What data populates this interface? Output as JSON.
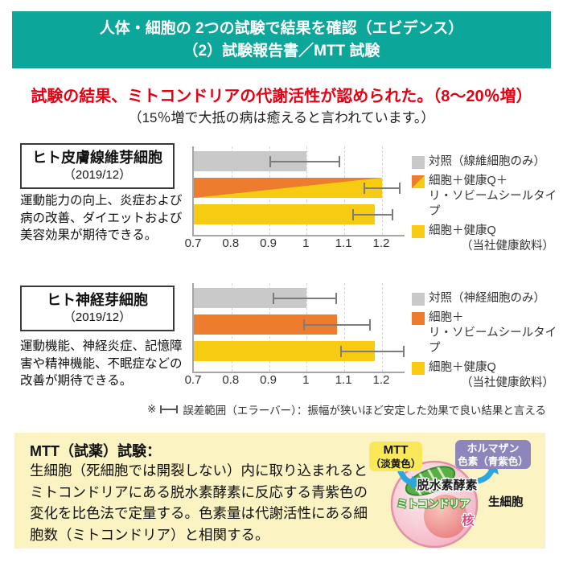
{
  "header": {
    "line1": "人体・細胞の 2つの試験で結果を確認（エビデンス）",
    "line2": "（2）試験報告書／MTT 試験",
    "bg_color": "#0DA69A"
  },
  "headline": {
    "text": "試験の結果、ミトコンドリアの代謝活性が認められた。（8～20％増）",
    "color": "#E60012",
    "subtext": "（15％増で大抵の病は癒えると言われています。）"
  },
  "sections": [
    {
      "box_title": "ヒト皮膚線維芽細胞",
      "box_date": "（2019/12）",
      "description": "運動能力の向上、炎症および病の改善、ダイエットおよび美容効果が期待できる。"
    },
    {
      "box_title": "ヒト神経芽細胞",
      "box_date": "（2019/12）",
      "description": "運動機能、神経炎症、記憶障害や精神機能、不眠症などの改善が期待できる。"
    }
  ],
  "chart_data": [
    {
      "type": "bar",
      "orientation": "horizontal",
      "title": "ヒト皮膚線維芽細胞（2019/12）MTT試験 相対代謝活性",
      "xlim": [
        0.7,
        1.26
      ],
      "ticks": [
        0.7,
        0.8,
        0.9,
        1.0,
        1.1,
        1.2
      ],
      "tick_labels": [
        "0.7",
        "0.8",
        "0.9",
        "1",
        "1.1",
        "1.2"
      ],
      "grid": "dashed-vertical",
      "series": [
        {
          "name": "対照（線維細胞のみ）",
          "value": 1.0,
          "error_low": 0.9,
          "error_high": 1.09,
          "fill": {
            "type": "solid",
            "color": "#C9C9CA"
          }
        },
        {
          "name": "細胞＋健康Q＋リ・ソビームシールタイプ",
          "value": 1.2,
          "error_low": 1.15,
          "error_high": 1.25,
          "fill": {
            "type": "diagonal",
            "from": "#ED7C2F",
            "to": "#F7CB12"
          }
        },
        {
          "name": "細胞＋健康Q（当社健康飲料）",
          "value": 1.18,
          "error_low": 1.12,
          "error_high": 1.23,
          "fill": {
            "type": "solid",
            "color": "#F7CB12"
          }
        }
      ],
      "legend": [
        {
          "lines": [
            "対照（線維細胞のみ）"
          ],
          "indent2": 0,
          "swatch": {
            "type": "solid",
            "color": "#C9C9CA"
          }
        },
        {
          "lines": [
            "細胞＋健康Q＋",
            "リ・ソビームシールタイプ"
          ],
          "indent2": 0,
          "swatch": {
            "type": "diagonal",
            "from": "#ED7C2F",
            "to": "#F7CB12"
          }
        },
        {
          "lines": [
            "細胞＋健康Q",
            "（当社健康飲料）"
          ],
          "indent2": 40,
          "swatch": {
            "type": "solid",
            "color": "#F7CB12"
          }
        }
      ]
    },
    {
      "type": "bar",
      "orientation": "horizontal",
      "title": "ヒト神経芽細胞（2019/12）MTT試験 相対代謝活性",
      "xlim": [
        0.7,
        1.26
      ],
      "ticks": [
        0.7,
        0.8,
        0.9,
        1.0,
        1.1,
        1.2
      ],
      "tick_labels": [
        "0.7",
        "0.8",
        "0.9",
        "1",
        "1.1",
        "1.2"
      ],
      "grid": "dashed-vertical",
      "series": [
        {
          "name": "対照（神経細胞のみ）",
          "value": 1.0,
          "error_low": 0.91,
          "error_high": 1.08,
          "fill": {
            "type": "solid",
            "color": "#C9C9CA"
          }
        },
        {
          "name": "細胞＋リ・ソビームシールタイプ",
          "value": 1.08,
          "error_low": 0.99,
          "error_high": 1.17,
          "fill": {
            "type": "solid",
            "color": "#ED7C2F"
          }
        },
        {
          "name": "細胞＋健康Q（当社健康飲料）",
          "value": 1.18,
          "error_low": 1.09,
          "error_high": 1.26,
          "fill": {
            "type": "solid",
            "color": "#F7CB12"
          }
        }
      ],
      "legend": [
        {
          "lines": [
            "対照（神経細胞のみ）"
          ],
          "indent2": 0,
          "swatch": {
            "type": "solid",
            "color": "#C9C9CA"
          }
        },
        {
          "lines": [
            "細胞＋",
            "リ・ソビームシールタイプ"
          ],
          "indent2": 0,
          "swatch": {
            "type": "solid",
            "color": "#ED7C2F"
          }
        },
        {
          "lines": [
            "細胞＋健康Q",
            "（当社健康飲料）"
          ],
          "indent2": 40,
          "swatch": {
            "type": "solid",
            "color": "#F7CB12"
          }
        }
      ]
    }
  ],
  "note": {
    "prefix": "※",
    "text": "誤差範囲（エラーバー）：振幅が狭いほど安定した効果で良い結果と言える"
  },
  "mtt_box": {
    "bg_color": "#FCF3C3",
    "title": "MTT（試薬）試験：",
    "body": "生細胞（死細胞では開裂しない）内に取り込まれるとミトコンドリアにある脱水素酵素に反応する青紫色の変化を比色法で定量する。色素量は代謝活性にある細胞数（ミトコンドリア）と相関する。",
    "diagram": {
      "mtt_chip_line1": "MTT",
      "mtt_chip_line2": "（淡黄色）",
      "mtt_chip_color": "#F8E85A",
      "formazan_chip_line1": "ホルマザン",
      "formazan_chip_line2": "色素（青紫色）",
      "formazan_chip_color": "#8D86BD",
      "enzyme_label": "脱水素酵素",
      "mitochondria_label": "ミトコンドリア",
      "nucleus_label": "核",
      "cell_label": "生細胞",
      "arrow_color": "#2BA6DF"
    }
  }
}
